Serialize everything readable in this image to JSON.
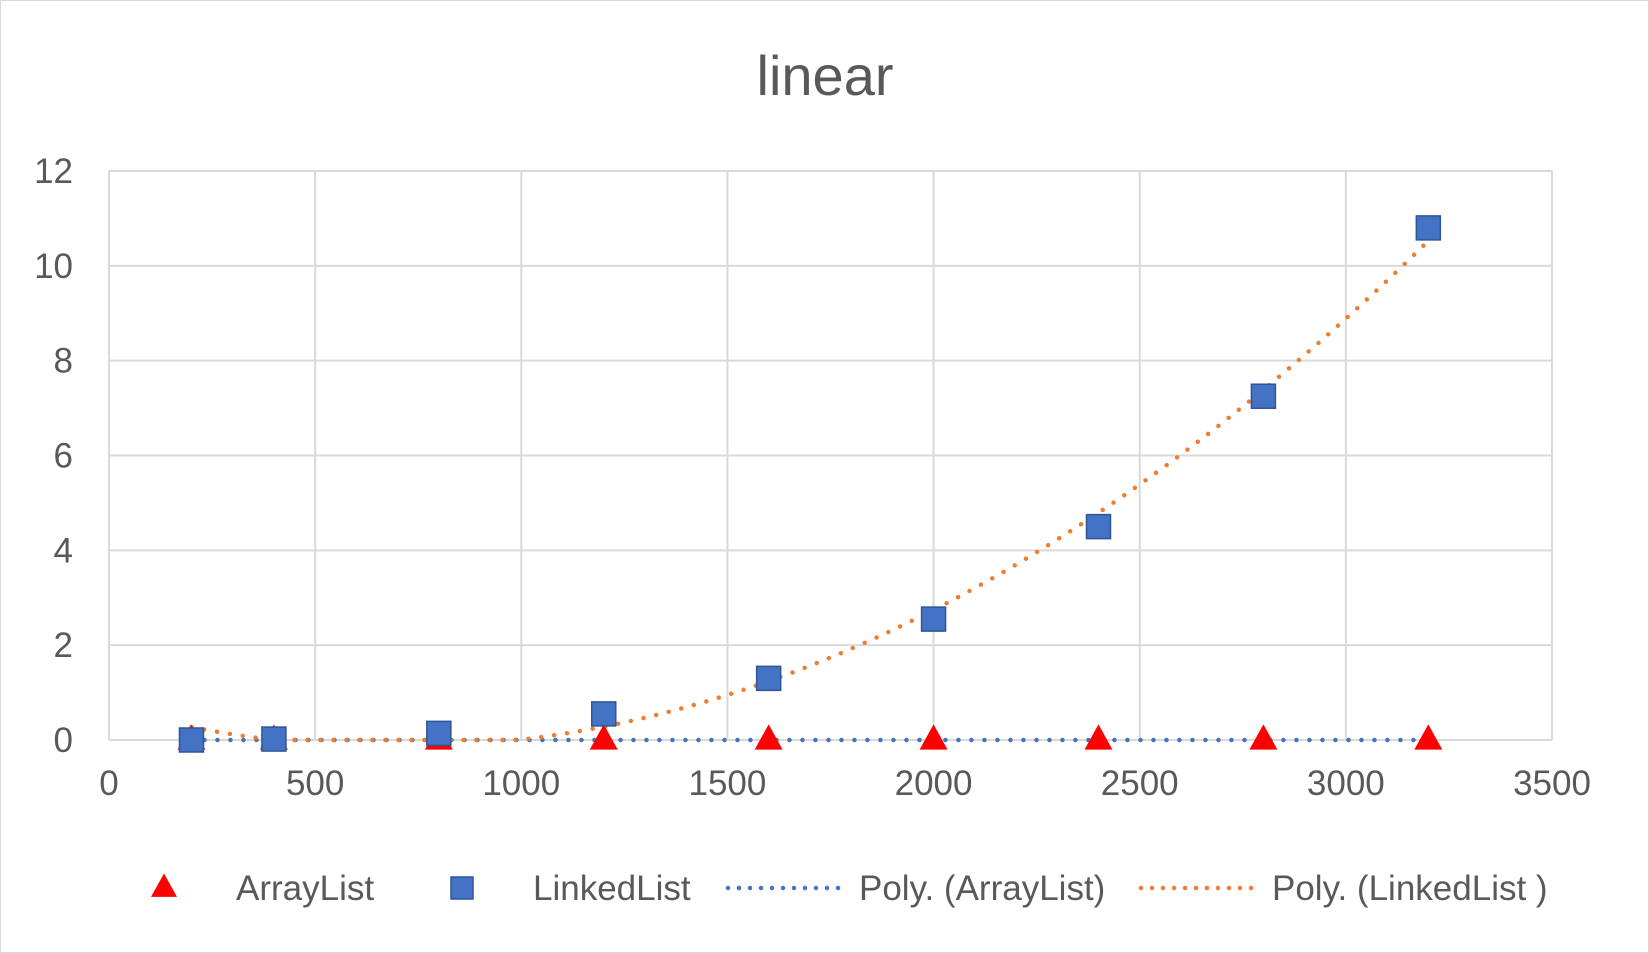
{
  "chart_data": {
    "type": "scatter",
    "title": "linear",
    "xlabel": "",
    "ylabel": "",
    "xlim": [
      0,
      3500
    ],
    "ylim": [
      0,
      12
    ],
    "x_ticks": [
      "0",
      "500",
      "1000",
      "1500",
      "2000",
      "2500",
      "3000",
      "3500"
    ],
    "y_ticks": [
      "0",
      "2",
      "4",
      "6",
      "8",
      "10",
      "12"
    ],
    "grid": true,
    "legend_position": "bottom",
    "series": [
      {
        "name": "ArrayList",
        "marker": "triangle",
        "color": "#ff0000",
        "x": [
          200,
          400,
          800,
          1200,
          1600,
          2000,
          2400,
          2800,
          3200
        ],
        "values": [
          0,
          0,
          0,
          0,
          0,
          0,
          0,
          0,
          0
        ]
      },
      {
        "name": "LinkedList",
        "marker": "square",
        "color": "#4472c4",
        "x": [
          200,
          400,
          800,
          1200,
          1600,
          2000,
          2400,
          2800,
          3200
        ],
        "values": [
          0.0,
          0.02,
          0.14,
          0.55,
          1.3,
          2.55,
          4.5,
          7.25,
          10.8
        ]
      }
    ],
    "trendlines": [
      {
        "name": "Poly. (ArrayList)",
        "of": "ArrayList",
        "type": "polynomial",
        "color": "#4472c4",
        "style": "dotted"
      },
      {
        "name": "Poly. (LinkedList )",
        "of": "LinkedList",
        "type": "polynomial",
        "color": "#ed7d31",
        "style": "dotted"
      }
    ]
  }
}
